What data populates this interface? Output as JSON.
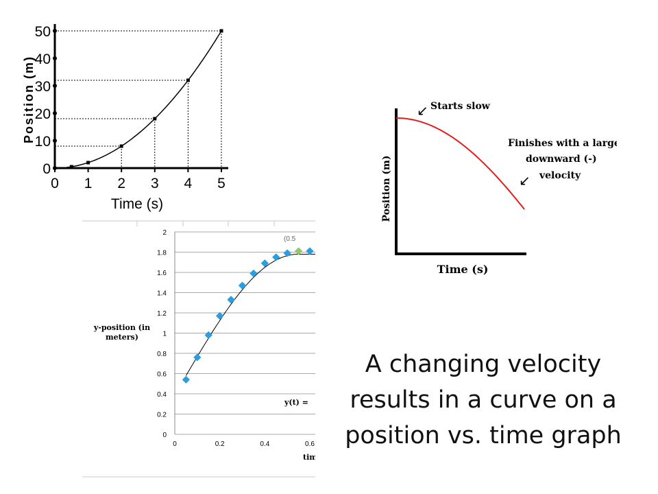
{
  "caption": {
    "line1": "A changing velocity",
    "line2": "results in a curve on a",
    "line3": "position vs. time graph"
  },
  "chart_data": [
    {
      "type": "line",
      "xlabel": "Time (s)",
      "ylabel": "Position (m)",
      "x_ticks": [
        "0",
        "1",
        "2",
        "3",
        "4",
        "5"
      ],
      "y_ticks": [
        "0",
        "10",
        "20",
        "30",
        "40",
        "50"
      ],
      "xlim": [
        0,
        5
      ],
      "ylim": [
        0,
        50
      ],
      "series": [
        {
          "x": [
            0.5,
            1,
            2,
            3,
            4,
            5
          ],
          "y": [
            0.5,
            2,
            8,
            18,
            32,
            50
          ]
        }
      ],
      "guide_lines": "dotted lines from marked points to both axes",
      "grid": false,
      "line_color": "#000000"
    },
    {
      "type": "line",
      "xlabel": "Time (s)",
      "ylabel": "Position (m)",
      "x_ticks": [],
      "y_ticks": [],
      "series": [
        {
          "x": [
            0,
            0.15,
            0.3,
            0.45,
            0.6,
            0.75,
            0.9,
            1.0
          ],
          "y": [
            1.0,
            0.99,
            0.96,
            0.9,
            0.82,
            0.7,
            0.53,
            0.4
          ]
        }
      ],
      "line_color": "#e31b1b",
      "annotations": [
        {
          "text": "Starts slow",
          "arrow": "↙"
        },
        {
          "lines": [
            "Finishes with a large",
            "downward (-)",
            "velocity"
          ],
          "arrow": "↙"
        }
      ]
    },
    {
      "type": "scatter",
      "xlabel": "time",
      "ylabel_lines": [
        "y-position (in",
        "meters)"
      ],
      "x_ticks": [
        "0",
        "0.2",
        "0.4",
        "0.6"
      ],
      "y_ticks": [
        "0",
        "0.2",
        "0.4",
        "0.6",
        "0.8",
        "1",
        "1.2",
        "1.4",
        "1.6",
        "1.8",
        "2"
      ],
      "xlim": [
        0,
        0.6
      ],
      "ylim": [
        0,
        2
      ],
      "grid": true,
      "series": [
        {
          "x": [
            0.05,
            0.1,
            0.15,
            0.2,
            0.25,
            0.3,
            0.35,
            0.4,
            0.45,
            0.5,
            0.55,
            0.6
          ],
          "y": [
            0.54,
            0.76,
            0.98,
            1.17,
            1.33,
            1.47,
            1.59,
            1.69,
            1.75,
            1.79,
            1.81,
            1.81
          ]
        }
      ],
      "highlight_x": 0.55,
      "fit_label": "y(t) =",
      "point_label": "(0.5",
      "marker_color": "#2a9fe0",
      "highlight_color": "#8fc96a"
    }
  ]
}
